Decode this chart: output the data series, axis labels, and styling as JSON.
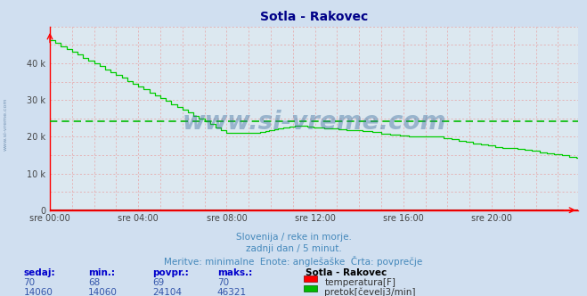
{
  "title": "Sotla - Rakovec",
  "bg_color": "#d0dff0",
  "plot_bg_color": "#dce8f0",
  "grid_v_color": "#e8a0a0",
  "grid_h_color": "#e8a0a0",
  "xlabel_times": [
    "sre 00:00",
    "sre 04:00",
    "sre 08:00",
    "sre 12:00",
    "sre 16:00",
    "sre 20:00"
  ],
  "ylabel_ticks": [
    0,
    10000,
    20000,
    30000,
    40000
  ],
  "ylabel_labels": [
    "0",
    "10 k",
    "20 k",
    "30 k",
    "40 k"
  ],
  "ylim": [
    0,
    50000
  ],
  "xlim_max": 287,
  "avg_line_value": 24104,
  "avg_line_color": "#00bb00",
  "flow_color": "#00cc00",
  "temp_color": "#cc0000",
  "watermark": "www.si-vreme.com",
  "watermark_color": "#336699",
  "watermark_alpha": 0.4,
  "subtitle1": "Slovenija / reke in morje.",
  "subtitle2": "zadnji dan / 5 minut.",
  "subtitle3": "Meritve: minimalne  Enote: anglešaške  Črta: povprečje",
  "subtitle_color": "#4488bb",
  "legend_title": "Sotla - Rakovec",
  "legend_temp_label": "temperatura[F]",
  "legend_flow_label": "pretok[čevelj3/min]",
  "table_headers": [
    "sedaj:",
    "min.:",
    "povpr.:",
    "maks.:"
  ],
  "table_temp": [
    "70",
    "68",
    "69",
    "70"
  ],
  "table_flow": [
    "14060",
    "14060",
    "24104",
    "46321"
  ],
  "title_color": "#000088",
  "table_label_color": "#0000cc",
  "table_value_color": "#3355aa",
  "n_points": 288
}
